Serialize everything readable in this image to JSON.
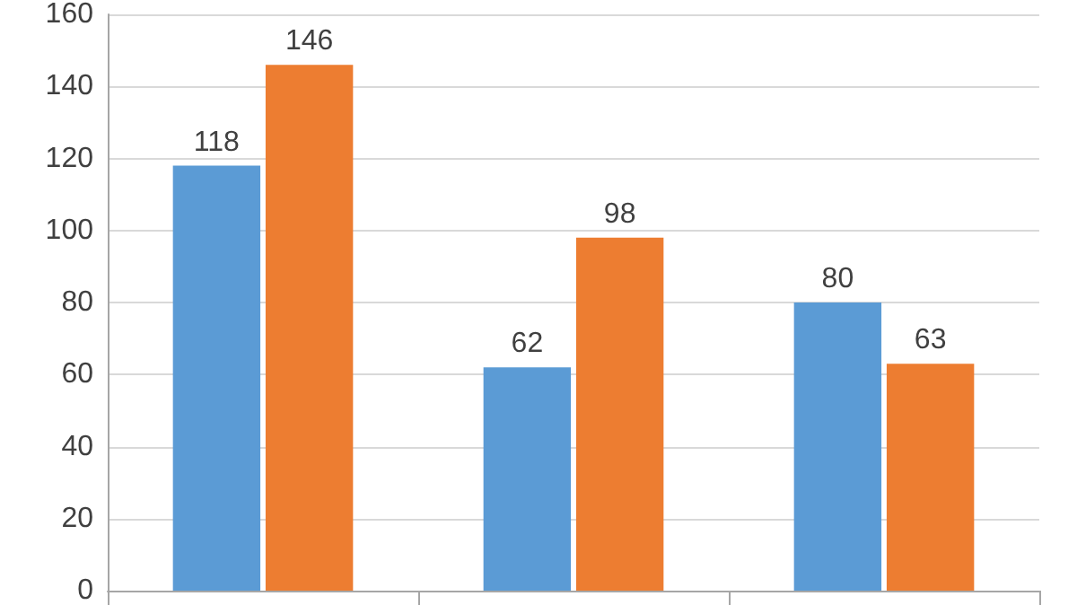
{
  "chart_data": {
    "type": "bar",
    "categories": [
      null,
      null,
      null
    ],
    "series": [
      {
        "color": "#5b9bd5",
        "values": [
          118,
          62,
          80
        ]
      },
      {
        "color": "#ed7d31",
        "values": [
          146,
          98,
          63
        ]
      }
    ],
    "ylim": [
      0,
      160
    ],
    "yticks": [
      0,
      20,
      40,
      60,
      80,
      100,
      120,
      140,
      160
    ],
    "grid": "y",
    "data_labels": true
  }
}
